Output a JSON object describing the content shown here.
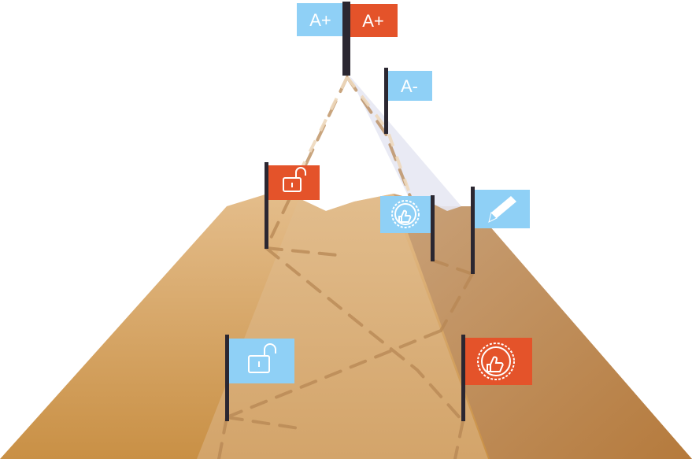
{
  "colors": {
    "blue": "#8fd0f6",
    "orange": "#e4532a",
    "pole": "#2b2731",
    "mountain_light": "#ddb27e",
    "mountain_dark": "#c38f51",
    "path": "#b98c5c"
  },
  "flags": {
    "summit_blue": {
      "label": "A+",
      "color": "blue"
    },
    "summit_orange": {
      "label": "A+",
      "color": "orange"
    },
    "grade_a_minus": {
      "label": "A-",
      "color": "blue"
    },
    "lock_orange": {
      "icon": "unlocked-padlock-icon",
      "color": "orange"
    },
    "thumb_blue": {
      "icon": "thumbs-up-badge-icon",
      "color": "blue"
    },
    "pencil_blue": {
      "icon": "pencil-icon",
      "color": "blue"
    },
    "lock_blue": {
      "icon": "unlocked-padlock-icon",
      "color": "blue"
    },
    "thumb_orange": {
      "icon": "thumbs-up-badge-icon",
      "color": "orange"
    }
  }
}
